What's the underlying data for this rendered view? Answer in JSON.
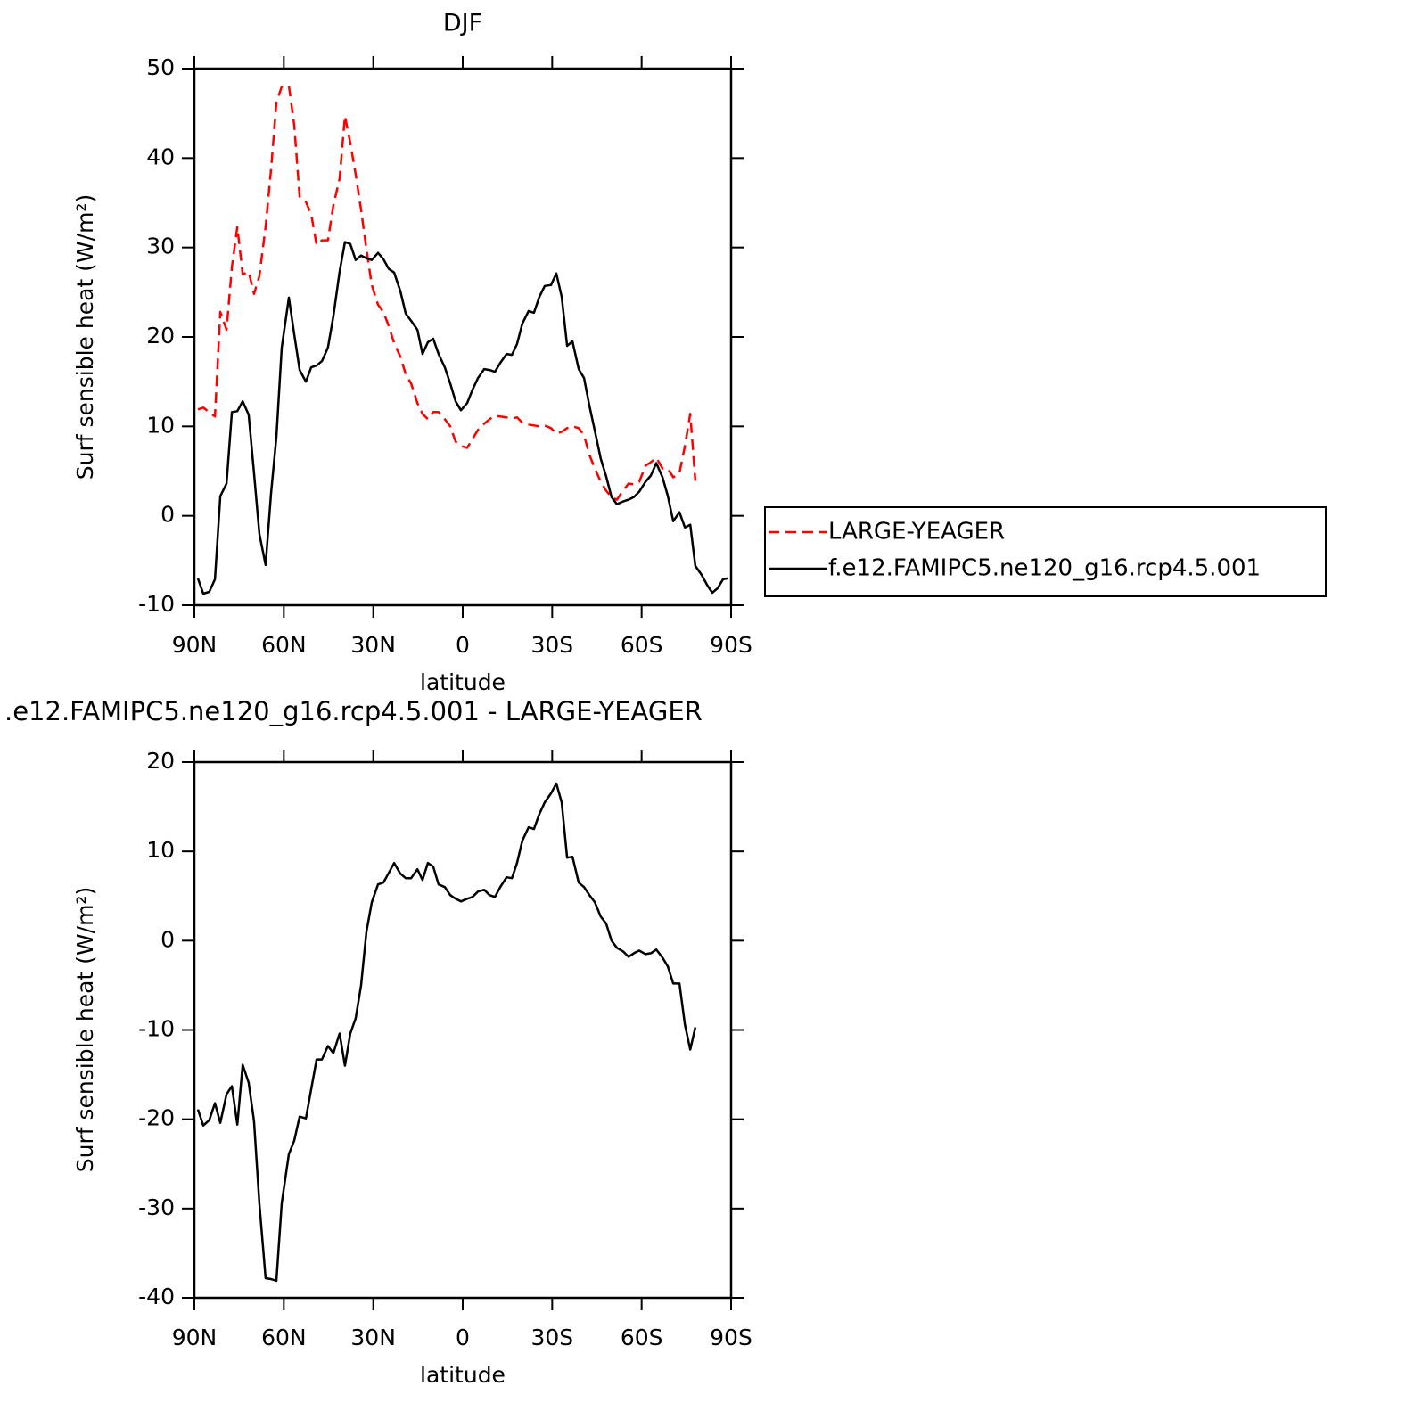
{
  "chart_data": [
    {
      "type": "line",
      "title": "DJF",
      "xlabel": "latitude",
      "ylabel": "Surf sensible heat (W/m²)",
      "x": [
        88.8,
        87,
        85,
        83.1,
        81.3,
        79.2,
        77.4,
        75.6,
        73.8,
        71.8,
        70,
        68.2,
        66.1,
        64.3,
        62.5,
        60.7,
        58.3,
        56.5,
        54.7,
        52.6,
        50.8,
        49,
        47.2,
        45.2,
        43.4,
        41.3,
        39.5,
        37.7,
        35.9,
        34.1,
        32.3,
        30.5,
        28.4,
        26.6,
        24.8,
        23,
        20.9,
        19.1,
        17.3,
        15.2,
        13.5,
        11.7,
        9.9,
        8.1,
        6,
        4.2,
        2.4,
        0.6,
        -1.5,
        -3.3,
        -5.1,
        -7.2,
        -9,
        -10.8,
        -12.6,
        -14.7,
        -16.5,
        -18.2,
        -20,
        -22.1,
        -23.9,
        -25.7,
        -27.5,
        -29.6,
        -31.4,
        -33.2,
        -35,
        -36.8,
        -38.9,
        -40.7,
        -42.5,
        -44.3,
        -46.3,
        -48.1,
        -49.9,
        -51.7,
        -53.8,
        -55.6,
        -57.4,
        -59.2,
        -61.3,
        -63.1,
        -64.9,
        -67,
        -68.8,
        -70.6,
        -72.7,
        -74.5,
        -76.3,
        -78,
        -80.1,
        -81.9,
        -83.7,
        -85.5,
        -87.3,
        -88.8
      ],
      "series": [
        {
          "name": "LARGE-YEAGER",
          "color": "#ff0000",
          "dash": true,
          "values": [
            11.9,
            12.1,
            11.6,
            11.1,
            22.8,
            20.8,
            27.8,
            32.3,
            27.0,
            27.3,
            24.8,
            26.8,
            32.3,
            38.7,
            46.2,
            48.0,
            48.1,
            43.7,
            35.7,
            35.1,
            33.7,
            30.3,
            30.8,
            30.8,
            34.7,
            37.7,
            44.7,
            41.7,
            38.2,
            34.2,
            29.8,
            25.8,
            23.6,
            22.8,
            21.2,
            19.3,
            17.8,
            15.8,
            14.8,
            12.6,
            11.4,
            10.8,
            11.6,
            11.6,
            10.8,
            10.0,
            8.3,
            7.8,
            7.6,
            8.6,
            9.6,
            10.3,
            10.8,
            11.2,
            11.1,
            11.0,
            10.9,
            11.0,
            10.4,
            10.2,
            10.1,
            10.0,
            10.1,
            9.8,
            9.2,
            9.4,
            9.8,
            10.0,
            9.8,
            9.0,
            6.8,
            5.3,
            3.8,
            2.8,
            2.1,
            1.8,
            2.8,
            3.6,
            3.5,
            3.8,
            5.6,
            6.0,
            6.5,
            5.3,
            5.3,
            4.3,
            4.8,
            7.8,
            11.4,
            3.9,
            null,
            null,
            null,
            null,
            null,
            null
          ]
        },
        {
          "name": "f.e12.FAMIPC5.ne120_g16.rcp4.5.001",
          "color": "#000000",
          "dash": false,
          "values": [
            -7.0,
            -8.7,
            -8.5,
            -7.1,
            2.2,
            3.6,
            11.6,
            11.7,
            12.8,
            11.3,
            4.8,
            -2.0,
            -5.5,
            2.5,
            8.8,
            18.8,
            24.4,
            20.3,
            16.3,
            15.0,
            16.6,
            16.8,
            17.3,
            18.8,
            22.3,
            27.3,
            30.6,
            30.4,
            28.6,
            29.1,
            28.8,
            28.6,
            29.4,
            28.7,
            27.6,
            27.2,
            25.1,
            22.6,
            21.8,
            20.8,
            18.1,
            19.4,
            19.8,
            18.1,
            16.6,
            14.8,
            12.8,
            11.8,
            12.6,
            14.1,
            15.4,
            16.4,
            16.3,
            16.1,
            17.1,
            18.1,
            18.0,
            19.2,
            21.5,
            22.9,
            22.7,
            24.5,
            25.7,
            25.8,
            27.1,
            24.5,
            19.0,
            19.5,
            16.4,
            15.4,
            12.3,
            9.5,
            6.4,
            4.4,
            2.1,
            1.3,
            1.6,
            1.8,
            2.1,
            2.7,
            3.8,
            4.5,
            5.9,
            4.3,
            2.2,
            -0.6,
            0.4,
            -1.3,
            -1.0,
            -5.6,
            -6.6,
            -7.7,
            -8.6,
            -8.1,
            -7.1,
            -7.0
          ]
        }
      ],
      "xlim": [
        90,
        -90
      ],
      "xticks": [
        {
          "value": 90,
          "label": "90N"
        },
        {
          "value": 60,
          "label": "60N"
        },
        {
          "value": 30,
          "label": "30N"
        },
        0,
        {
          "value": -30,
          "label": "30S"
        },
        {
          "value": -60,
          "label": "60S"
        },
        {
          "value": -90,
          "label": "90S"
        }
      ],
      "ylim": [
        -10,
        50
      ],
      "yticks": [
        -10,
        0,
        10,
        20,
        30,
        40,
        50
      ],
      "legend": "right"
    },
    {
      "type": "line",
      "title": ".e12.FAMIPC5.ne120_g16.rcp4.5.001 - LARGE-YEAGER",
      "xlabel": "latitude",
      "ylabel": "Surf sensible heat (W/m²)",
      "x": [
        88.8,
        87,
        85,
        83.1,
        81.3,
        79.2,
        77.4,
        75.6,
        73.8,
        71.8,
        70,
        68.2,
        66.1,
        64.3,
        62.5,
        60.7,
        58.3,
        56.5,
        54.7,
        52.6,
        50.8,
        49,
        47.2,
        45.2,
        43.4,
        41.3,
        39.5,
        37.7,
        35.9,
        34.1,
        32.3,
        30.5,
        28.4,
        26.6,
        24.8,
        23,
        20.9,
        19.1,
        17.3,
        15.2,
        13.5,
        11.7,
        9.9,
        8.1,
        6,
        4.2,
        2.4,
        0.6,
        -1.5,
        -3.3,
        -5.1,
        -7.2,
        -9,
        -10.8,
        -12.6,
        -14.7,
        -16.5,
        -18.2,
        -20,
        -22.1,
        -23.9,
        -25.7,
        -27.5,
        -29.6,
        -31.4,
        -33.2,
        -35,
        -36.8,
        -38.9,
        -40.7,
        -42.5,
        -44.3,
        -46.3,
        -48.1,
        -49.9,
        -51.7,
        -53.8,
        -55.6,
        -57.4,
        -59.2,
        -61.3,
        -63.1,
        -64.9,
        -67,
        -68.8,
        -70.6,
        -72.7,
        -74.5,
        -76.3,
        -78,
        -80.1,
        -81.9,
        -83.7,
        -85.5,
        -87.3,
        -88.8
      ],
      "series": [
        {
          "color": "#000000",
          "dash": false,
          "values": [
            -18.9,
            -20.7,
            -20.1,
            -18.2,
            -20.4,
            -17.2,
            -16.3,
            -20.6,
            -13.9,
            -15.9,
            -20.2,
            -29.4,
            -37.8,
            -37.9,
            -38.1,
            -29.4,
            -23.9,
            -22.4,
            -19.7,
            -19.9,
            -16.6,
            -13.3,
            -13.3,
            -11.8,
            -12.6,
            -10.4,
            -14.0,
            -10.4,
            -8.7,
            -5.0,
            1.0,
            4.3,
            6.3,
            6.5,
            7.6,
            8.7,
            7.5,
            7.0,
            7.0,
            8.0,
            6.8,
            8.7,
            8.3,
            6.3,
            6.0,
            5.1,
            4.7,
            4.4,
            4.7,
            4.9,
            5.5,
            5.7,
            5.1,
            4.9,
            6.0,
            7.1,
            7.0,
            8.7,
            11.2,
            12.7,
            12.5,
            14.2,
            15.5,
            16.5,
            17.6,
            15.5,
            9.3,
            9.4,
            6.5,
            6.0,
            5.1,
            4.3,
            2.7,
            1.9,
            0.0,
            -0.8,
            -1.2,
            -1.8,
            -1.4,
            -1.1,
            -1.5,
            -1.4,
            -1.0,
            -1.9,
            -2.9,
            -4.8,
            -4.8,
            -9.4,
            -12.2,
            -9.7,
            null,
            null,
            null,
            null,
            null,
            null
          ]
        }
      ],
      "xlim": [
        90,
        -90
      ],
      "xticks": [
        {
          "value": 90,
          "label": "90N"
        },
        {
          "value": 60,
          "label": "60N"
        },
        {
          "value": 30,
          "label": "30N"
        },
        0,
        {
          "value": -30,
          "label": "30S"
        },
        {
          "value": -60,
          "label": "60S"
        },
        {
          "value": -90,
          "label": "90S"
        }
      ],
      "ylim": [
        -40,
        20
      ],
      "yticks": [
        -40,
        -30,
        -20,
        -10,
        0,
        10,
        20
      ]
    }
  ]
}
